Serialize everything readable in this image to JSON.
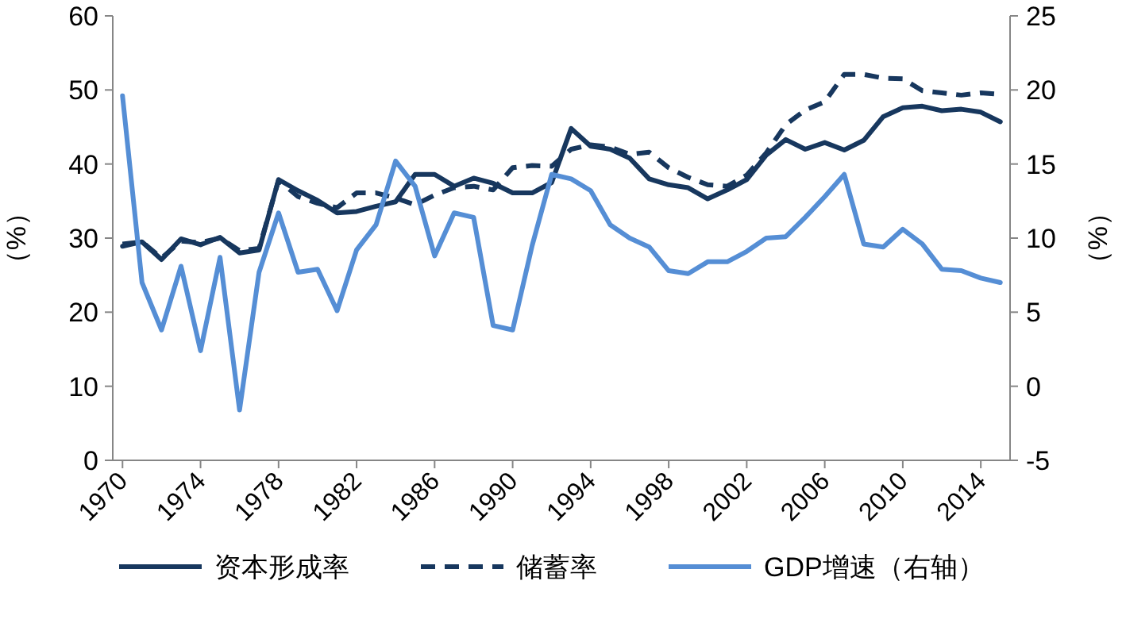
{
  "chart_data": {
    "type": "line",
    "ylabel": "（%）",
    "y2label": "（%）",
    "categories": [
      "1970",
      null,
      null,
      null,
      "1974",
      null,
      null,
      null,
      "1978",
      null,
      null,
      null,
      "1982",
      null,
      null,
      null,
      "1986",
      null,
      null,
      null,
      "1990",
      null,
      null,
      null,
      "1994",
      null,
      null,
      null,
      "1998",
      null,
      null,
      null,
      "2002",
      null,
      null,
      null,
      "2006",
      null,
      null,
      null,
      "2010",
      null,
      null,
      null,
      "2014",
      null
    ],
    "ylim": [
      0,
      60
    ],
    "yticks": [
      0,
      10,
      20,
      30,
      40,
      50,
      60
    ],
    "y2lim": [
      -5,
      25
    ],
    "y2ticks": [
      -5,
      0,
      5,
      10,
      15,
      20,
      25
    ],
    "legend": "bottom",
    "series": [
      {
        "name": "资本形成率",
        "color": "#17375e",
        "line_style": "solid",
        "values": [
          28.9,
          29.5,
          27.1,
          29.9,
          29.1,
          30.1,
          28.0,
          28.4,
          37.9,
          36.4,
          35.1,
          33.4,
          33.6,
          34.3,
          34.9,
          38.6,
          38.6,
          37.0,
          38.1,
          37.4,
          36.1,
          36.1,
          37.5,
          44.8,
          42.4,
          42.0,
          40.8,
          38.0,
          37.2,
          36.8,
          35.3,
          36.5,
          37.9,
          41.2,
          43.3,
          42.0,
          42.9,
          41.9,
          43.2,
          46.4,
          47.6,
          47.8,
          47.2,
          47.4,
          47.0,
          45.7
        ]
      },
      {
        "name": "储蓄率",
        "color": "#17375e",
        "line_style": "dashed",
        "values": [
          29.2,
          29.5,
          27.3,
          29.6,
          29.4,
          30.0,
          28.3,
          28.6,
          37.8,
          35.6,
          34.7,
          34.1,
          36.1,
          36.1,
          35.4,
          34.5,
          35.8,
          36.8,
          37.0,
          36.5,
          39.5,
          39.8,
          39.7,
          42.0,
          42.6,
          42.3,
          41.3,
          41.6,
          39.5,
          38.2,
          37.2,
          37.0,
          38.5,
          41.5,
          45.3,
          47.3,
          48.4,
          52.1,
          52.1,
          51.6,
          51.5,
          49.9,
          49.6,
          49.3,
          49.6,
          49.4
        ]
      },
      {
        "name": "GDP增速（右轴）",
        "color": "#558ed5",
        "line_style": "solid",
        "axis": "y2",
        "values": [
          19.6,
          7.0,
          3.8,
          8.1,
          2.4,
          8.7,
          -1.6,
          7.7,
          11.7,
          7.7,
          7.9,
          5.1,
          9.2,
          10.9,
          15.2,
          13.5,
          8.8,
          11.7,
          11.4,
          4.1,
          3.8,
          9.5,
          14.3,
          14.0,
          13.2,
          10.9,
          10.0,
          9.4,
          7.8,
          7.6,
          8.4,
          8.4,
          9.1,
          10.0,
          10.1,
          11.4,
          12.8,
          14.3,
          9.6,
          9.4,
          10.6,
          9.6,
          7.9,
          7.8,
          7.3,
          7.0
        ]
      }
    ]
  }
}
